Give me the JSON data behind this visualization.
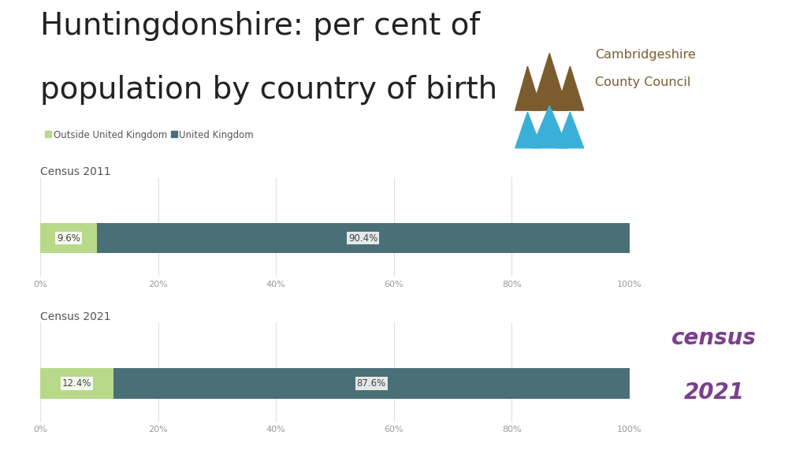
{
  "title_line1": "Huntingdonshire: per cent of",
  "title_line2": "population by country of birth",
  "title_fontsize": 28,
  "title_color": "#222222",
  "census2011_label": "Census 2011",
  "census2021_label": "Census 2021",
  "census_label_fontsize": 10,
  "census_label_color": "#555555",
  "legend_outside_label": "Outside United Kingdom",
  "legend_uk_label": "United Kingdom",
  "legend_fontsize": 8.5,
  "legend_marker_color_outside": "#b8d98a",
  "legend_marker_color_uk": "#4a6f77",
  "bar_outside_color": "#b8d98a",
  "bar_uk_color": "#4a6f77",
  "outside_2011": 9.6,
  "uk_2011": 90.4,
  "outside_2021": 12.4,
  "uk_2021": 87.6,
  "label_fontsize": 8.5,
  "label_color": "#444444",
  "axis_tick_color": "#999999",
  "axis_tick_fontsize": 8,
  "grid_color": "#e0e0e0",
  "bar_height": 0.55,
  "census_logo_purple": "#7b3f8c",
  "ccc_text_color": "#7a5c2e",
  "logo_brown": "#7a5c2e",
  "logo_blue": "#3ab0d8",
  "background_color": "#ffffff"
}
